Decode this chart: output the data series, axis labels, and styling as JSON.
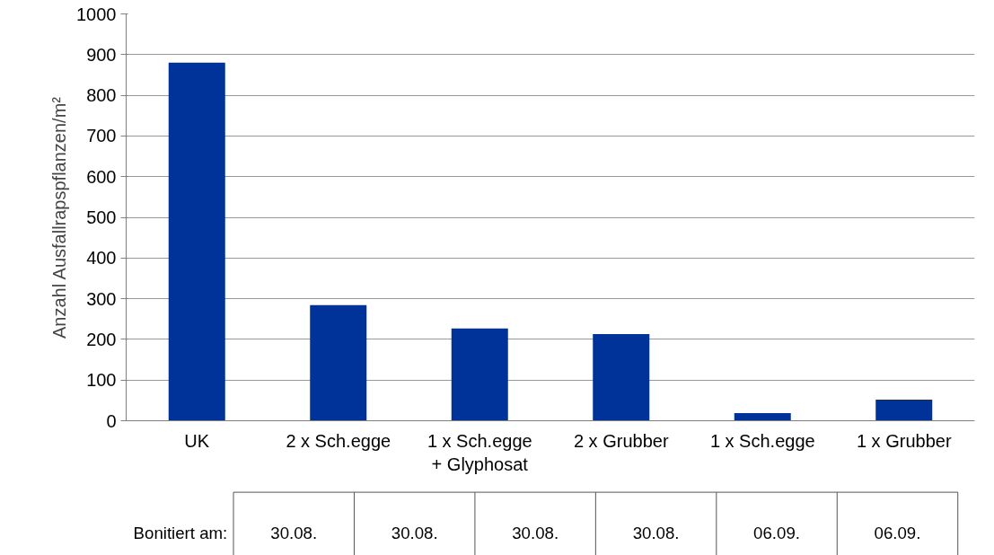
{
  "chart_data": {
    "type": "bar",
    "ylabel": "Anzahl Ausfallrapspflanzen/m²",
    "categories": [
      "UK",
      "2 x Sch.egge",
      "1 x Sch.egge\n+ Glyphosat",
      "2 x Grubber",
      "1 x Sch.egge",
      "1 x Grubber"
    ],
    "values": [
      880,
      284,
      227,
      213,
      19,
      52
    ],
    "color": "#003399",
    "ylim": [
      0,
      1000
    ],
    "yticks": [
      0,
      100,
      200,
      300,
      400,
      500,
      600,
      700,
      800,
      900,
      1000
    ],
    "grid": "y",
    "annotations": [
      "Bonitiert am:",
      "30.08.",
      "30.08.",
      "30.08.",
      "30.08.",
      "06.09.",
      "06.09."
    ]
  }
}
